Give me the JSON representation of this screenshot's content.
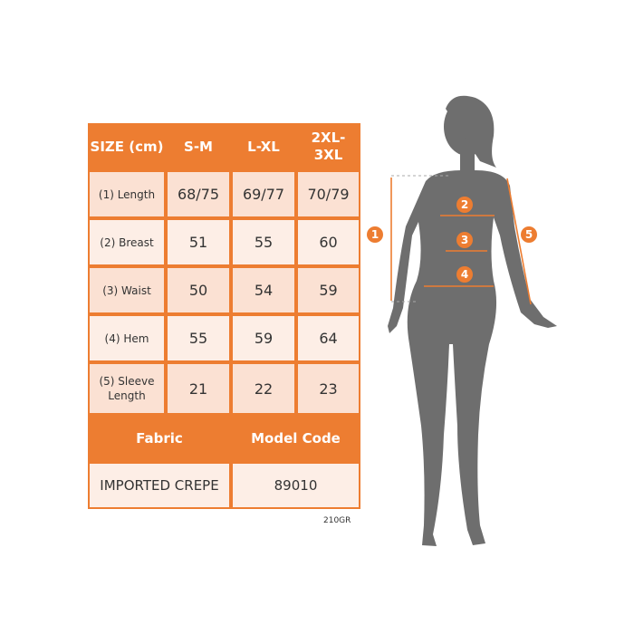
{
  "table": {
    "header": [
      "SIZE (cm)",
      "S-M",
      "L-XL",
      "2XL-3XL"
    ],
    "rows": [
      {
        "label": "(1) Length",
        "values": [
          "68/75",
          "69/77",
          "70/79"
        ]
      },
      {
        "label": "(2) Breast",
        "values": [
          "51",
          "55",
          "60"
        ]
      },
      {
        "label": "(3) Waist",
        "values": [
          "50",
          "54",
          "59"
        ]
      },
      {
        "label": "(4) Hem",
        "values": [
          "55",
          "59",
          "64"
        ]
      },
      {
        "label": "(5) Sleeve Length",
        "values": [
          "21",
          "22",
          "23"
        ]
      }
    ],
    "fabric_label": "Fabric",
    "model_code_label": "Model Code",
    "fabric_value": "IMPORTED CREPE",
    "model_code_value": "89010"
  },
  "corner_code": "210GR",
  "diagram": {
    "markers": [
      "1",
      "2",
      "3",
      "4",
      "5"
    ]
  },
  "colors": {
    "accent": "#ED7D31",
    "cell": "#FBE1D3",
    "cell_alt": "#FDEEE6",
    "silhouette": "#6E6E6E"
  }
}
